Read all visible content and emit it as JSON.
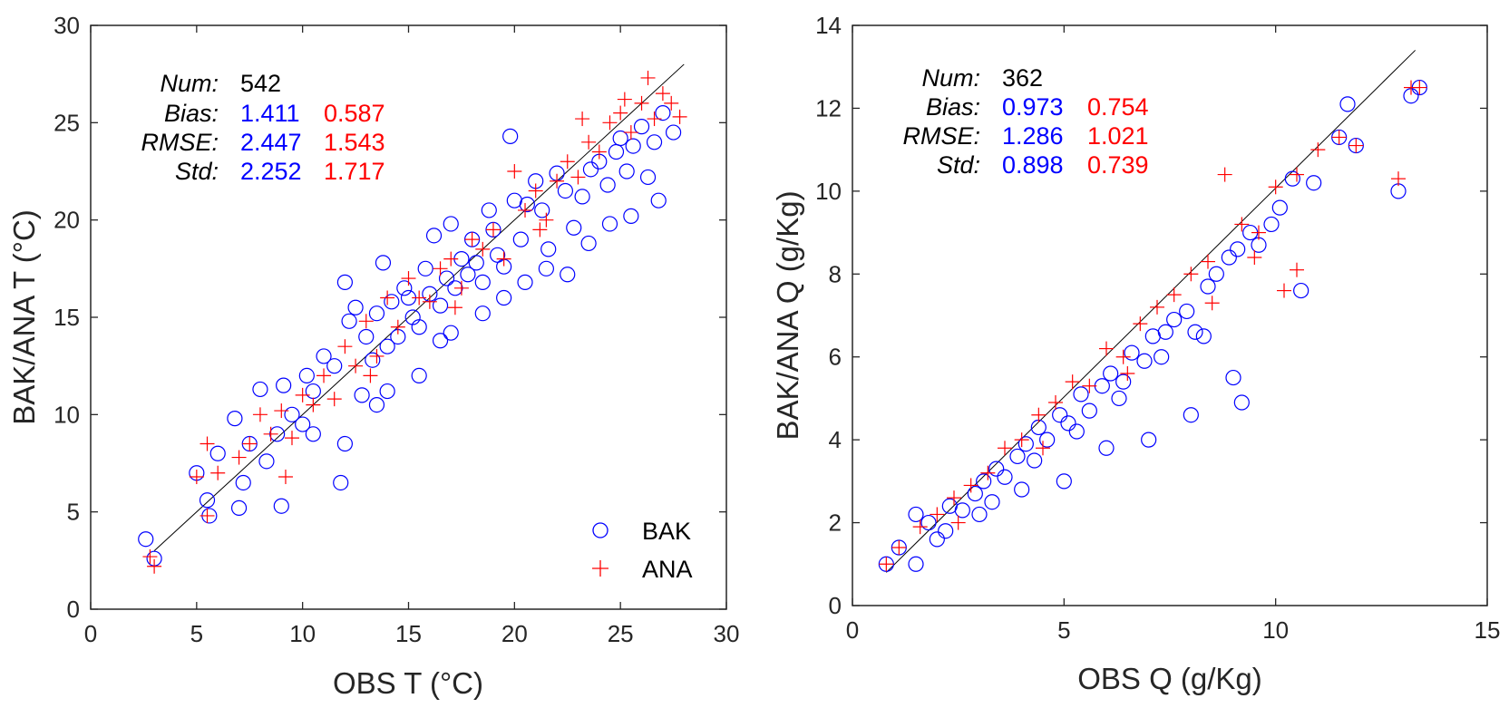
{
  "colors": {
    "bak": "#0000ff",
    "ana": "#ff0000",
    "axis": "#262626"
  },
  "chart_data": [
    {
      "type": "scatter",
      "xlabel": "OBS T (°C)",
      "ylabel": "BAK/ANA T (°C)",
      "xlim": [
        0,
        30
      ],
      "ylim": [
        0,
        30
      ],
      "xticks": [
        0,
        5,
        10,
        15,
        20,
        25,
        30
      ],
      "yticks": [
        0,
        5,
        10,
        15,
        20,
        25,
        30
      ],
      "grid": false,
      "legend": {
        "placement": "bottom-right",
        "entries": [
          "BAK",
          "ANA"
        ]
      },
      "reference_line": {
        "x": [
          3,
          28
        ],
        "y": [
          3,
          28
        ]
      },
      "stats": {
        "num_label": "Num",
        "num": "542",
        "bias_label": "Bias",
        "bias_bak": "1.411",
        "bias_ana": "0.587",
        "rmse_label": "RMSE",
        "rmse_bak": "2.447",
        "rmse_ana": "1.543",
        "std_label": "Std",
        "std_bak": "2.252",
        "std_ana": "1.717"
      },
      "series": [
        {
          "name": "BAK",
          "marker": "circle",
          "x": [
            2.6,
            3.0,
            5.0,
            5.5,
            5.6,
            6.0,
            6.8,
            7.0,
            7.2,
            7.5,
            8.0,
            8.3,
            8.8,
            9.0,
            9.1,
            9.5,
            10.0,
            10.2,
            10.5,
            11.0,
            11.5,
            11.8,
            12.0,
            12.2,
            12.5,
            12.8,
            13.0,
            13.3,
            13.5,
            13.8,
            14.0,
            14.2,
            14.5,
            14.8,
            15.0,
            15.2,
            15.5,
            15.8,
            16.0,
            16.2,
            16.5,
            16.8,
            17.0,
            17.2,
            17.5,
            17.8,
            18.0,
            18.2,
            18.5,
            18.8,
            19.0,
            19.2,
            19.5,
            19.8,
            20.0,
            20.3,
            20.6,
            21.0,
            21.3,
            21.6,
            22.0,
            22.4,
            22.8,
            23.2,
            23.6,
            24.0,
            24.4,
            24.8,
            25.0,
            25.3,
            25.6,
            26.0,
            26.3,
            26.6,
            27.0,
            27.5,
            14.0,
            16.5,
            18.5,
            20.5,
            22.5,
            24.5,
            12.0,
            10.5,
            17.0,
            19.5,
            15.5,
            13.5,
            21.5,
            23.5,
            25.5,
            26.8
          ],
          "y": [
            3.6,
            2.6,
            7.0,
            5.6,
            4.8,
            8.0,
            9.8,
            5.2,
            6.5,
            8.5,
            11.3,
            7.6,
            9.0,
            5.3,
            11.5,
            10.0,
            9.5,
            12.0,
            11.2,
            13.0,
            12.5,
            6.5,
            16.8,
            14.8,
            15.5,
            11.0,
            14.0,
            12.8,
            15.2,
            17.8,
            13.5,
            15.8,
            14.0,
            16.5,
            16.0,
            15.0,
            14.5,
            17.5,
            16.2,
            19.2,
            15.6,
            17.0,
            19.8,
            16.5,
            18.0,
            17.2,
            19.0,
            17.8,
            16.8,
            20.5,
            19.5,
            18.2,
            17.6,
            24.3,
            21.0,
            19.0,
            20.8,
            22.0,
            20.5,
            18.5,
            22.4,
            21.5,
            19.6,
            21.2,
            22.6,
            23.0,
            21.8,
            23.5,
            24.2,
            22.5,
            23.8,
            24.8,
            22.2,
            24.0,
            25.5,
            24.5,
            11.2,
            13.8,
            15.2,
            16.8,
            17.2,
            19.8,
            8.5,
            9.0,
            14.2,
            16.0,
            12.0,
            10.5,
            17.5,
            18.8,
            20.2,
            21.0
          ]
        },
        {
          "name": "ANA",
          "marker": "plus",
          "x": [
            2.8,
            3.0,
            5.0,
            5.5,
            6.0,
            7.0,
            7.5,
            8.0,
            8.5,
            9.0,
            9.5,
            10.0,
            10.5,
            11.0,
            11.5,
            12.0,
            12.5,
            13.0,
            13.5,
            14.0,
            14.5,
            15.0,
            15.5,
            16.0,
            16.5,
            17.0,
            17.5,
            18.0,
            18.5,
            19.0,
            19.5,
            20.0,
            20.5,
            21.0,
            21.5,
            22.0,
            22.5,
            23.0,
            23.5,
            24.0,
            24.5,
            25.0,
            25.5,
            26.0,
            26.3,
            26.6,
            27.0,
            27.4,
            27.8,
            5.5,
            9.2,
            13.2,
            17.2,
            21.2,
            23.2,
            25.2
          ],
          "y": [
            2.7,
            2.2,
            6.8,
            8.5,
            7.0,
            7.8,
            8.5,
            10.0,
            9.0,
            10.2,
            8.8,
            11.0,
            10.5,
            12.0,
            10.8,
            13.5,
            12.5,
            14.8,
            13.0,
            16.0,
            14.5,
            17.0,
            16.0,
            15.8,
            17.5,
            18.0,
            16.5,
            19.0,
            18.5,
            19.5,
            18.0,
            22.5,
            20.5,
            21.5,
            20.0,
            22.0,
            23.0,
            22.2,
            24.0,
            23.5,
            25.0,
            25.5,
            24.5,
            26.0,
            27.3,
            25.2,
            26.5,
            26.0,
            25.3,
            4.8,
            6.8,
            12.0,
            15.5,
            19.5,
            25.2,
            26.2
          ]
        }
      ]
    },
    {
      "type": "scatter",
      "xlabel": "OBS Q (g/Kg)",
      "ylabel": "BAK/ANA Q (g/Kg)",
      "xlim": [
        0,
        15
      ],
      "ylim": [
        0,
        14
      ],
      "xticks": [
        0,
        5,
        10,
        15
      ],
      "yticks": [
        0,
        2,
        4,
        6,
        8,
        10,
        12,
        14
      ],
      "grid": false,
      "reference_line": {
        "x": [
          0.8,
          13.3
        ],
        "y": [
          0.8,
          13.4
        ]
      },
      "stats": {
        "num_label": "Num",
        "num": "362",
        "bias_label": "Bias",
        "bias_bak": "0.973",
        "bias_ana": "0.754",
        "rmse_label": "RMSE",
        "rmse_bak": "1.286",
        "rmse_ana": "1.021",
        "std_label": "Std",
        "std_bak": "0.898",
        "std_ana": "0.739"
      },
      "series": [
        {
          "name": "BAK",
          "marker": "circle",
          "x": [
            0.8,
            1.1,
            1.5,
            1.8,
            2.0,
            2.3,
            2.6,
            2.9,
            3.1,
            3.4,
            3.6,
            3.9,
            4.1,
            4.4,
            4.6,
            4.9,
            5.1,
            5.4,
            5.6,
            5.9,
            6.1,
            6.4,
            6.6,
            6.9,
            7.1,
            7.4,
            7.6,
            7.9,
            8.1,
            8.4,
            8.6,
            8.9,
            9.1,
            9.4,
            9.6,
            9.9,
            10.1,
            10.4,
            10.6,
            10.9,
            11.5,
            11.7,
            11.9,
            12.9,
            13.2,
            13.4,
            1.5,
            2.2,
            3.3,
            4.3,
            5.3,
            6.3,
            7.3,
            8.3,
            9.2,
            7.0,
            8.0,
            9.0,
            6.0,
            5.0,
            4.0,
            3.0
          ],
          "y": [
            1.0,
            1.4,
            2.2,
            2.0,
            1.6,
            2.4,
            2.3,
            2.7,
            3.0,
            3.3,
            3.1,
            3.6,
            3.9,
            4.3,
            4.0,
            4.6,
            4.4,
            5.1,
            4.7,
            5.3,
            5.6,
            5.4,
            6.1,
            5.9,
            6.5,
            6.6,
            6.9,
            7.1,
            6.6,
            7.7,
            8.0,
            8.4,
            8.6,
            9.0,
            8.7,
            9.2,
            9.6,
            10.3,
            7.6,
            10.2,
            11.3,
            12.1,
            11.1,
            10.0,
            12.3,
            12.5,
            1.0,
            1.8,
            2.5,
            3.5,
            4.2,
            5.0,
            6.0,
            6.5,
            4.9,
            4.0,
            4.6,
            5.5,
            3.8,
            3.0,
            2.8,
            2.2
          ]
        },
        {
          "name": "ANA",
          "marker": "plus",
          "x": [
            0.8,
            1.1,
            1.6,
            2.0,
            2.4,
            2.8,
            3.2,
            3.6,
            4.0,
            4.4,
            4.8,
            5.2,
            5.6,
            6.0,
            6.4,
            6.8,
            7.2,
            7.6,
            8.0,
            8.4,
            8.8,
            9.2,
            9.6,
            10.0,
            10.2,
            10.5,
            11.0,
            11.5,
            11.9,
            12.9,
            13.2,
            13.4,
            2.5,
            4.5,
            6.5,
            8.5,
            9.5,
            10.5
          ],
          "y": [
            1.0,
            1.4,
            1.9,
            2.2,
            2.6,
            2.9,
            3.2,
            3.8,
            4.0,
            4.6,
            4.9,
            5.4,
            5.3,
            6.2,
            6.0,
            6.8,
            7.2,
            7.5,
            8.0,
            8.3,
            10.4,
            9.2,
            9.0,
            10.1,
            7.6,
            10.4,
            11.0,
            11.3,
            11.1,
            10.3,
            12.5,
            12.5,
            2.0,
            3.8,
            5.6,
            7.3,
            8.4,
            8.1
          ]
        }
      ]
    }
  ]
}
